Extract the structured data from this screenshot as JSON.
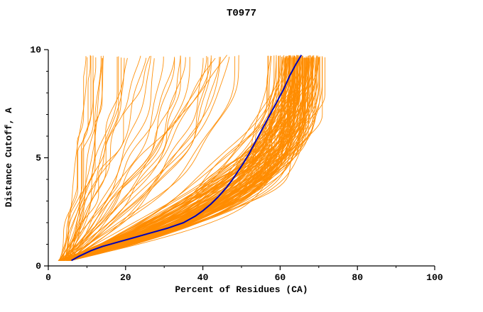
{
  "chart_data": {
    "type": "line",
    "title": "T0977",
    "xlabel": "Percent of Residues (CA)",
    "ylabel": "Distance Cutoff, A",
    "xlim": [
      0,
      100
    ],
    "ylim": [
      0,
      10
    ],
    "x_major_ticks": [
      0,
      20,
      40,
      60,
      80,
      100
    ],
    "x_minor_tick_step": 10,
    "y_major_ticks": [
      0,
      5,
      10
    ],
    "y_minor_tick_step": 1,
    "grid": false,
    "legend_position": "none",
    "colors": {
      "ensemble": "#ff8c00",
      "highlight": "#0000b8",
      "axis": "#000000",
      "background": "#ffffff"
    },
    "series": [
      {
        "name": "highlighted-model",
        "color_key": "highlight",
        "points": [
          [
            6,
            0.25
          ],
          [
            8,
            0.45
          ],
          [
            11,
            0.7
          ],
          [
            14,
            0.9
          ],
          [
            18,
            1.1
          ],
          [
            22,
            1.3
          ],
          [
            27,
            1.55
          ],
          [
            31,
            1.75
          ],
          [
            35,
            2.0
          ],
          [
            38,
            2.3
          ],
          [
            40,
            2.55
          ],
          [
            42,
            2.85
          ],
          [
            44,
            3.2
          ],
          [
            46,
            3.6
          ],
          [
            47.5,
            3.95
          ],
          [
            49,
            4.35
          ],
          [
            50.5,
            4.75
          ],
          [
            52,
            5.2
          ],
          [
            53.5,
            5.7
          ],
          [
            55,
            6.2
          ],
          [
            56.5,
            6.7
          ],
          [
            58,
            7.2
          ],
          [
            59.5,
            7.7
          ],
          [
            61,
            8.2
          ],
          [
            62.5,
            8.8
          ],
          [
            64,
            9.3
          ],
          [
            65.5,
            9.75
          ]
        ]
      }
    ],
    "ensemble": {
      "name": "model-ensemble",
      "color_key": "ensemble",
      "count": 170,
      "seed": 1977,
      "x_start_range": [
        2.5,
        6
      ],
      "y_start": 0.25,
      "y_top": 9.75,
      "bundle_fraction": 0.8,
      "bundle_xtop_range": [
        56,
        72
      ],
      "stray_xtop_range": [
        8,
        50
      ],
      "bundle_exponent_range": [
        1.9,
        4.2
      ],
      "stray_exponent_range": [
        1.0,
        2.4
      ],
      "wiggle_amplitude": 1.2
    }
  }
}
